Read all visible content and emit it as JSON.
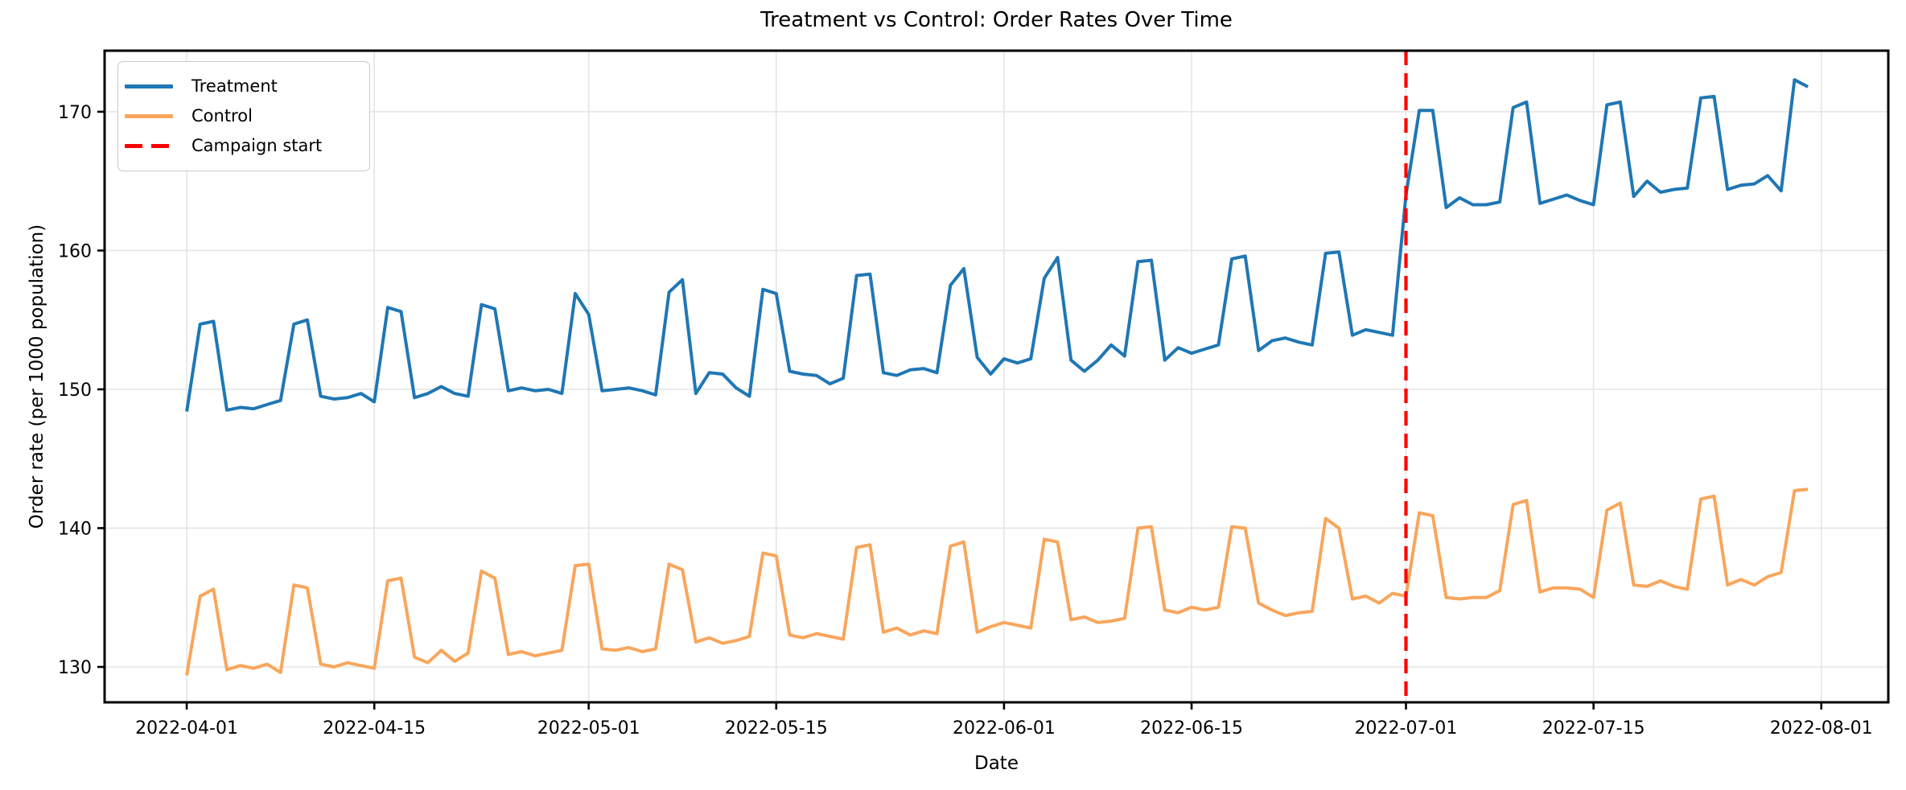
{
  "chart_data": {
    "type": "line",
    "title": "Treatment vs Control: Order Rates Over Time",
    "xlabel": "Date",
    "ylabel": "Order rate (per 1000 population)",
    "x_start_date": "2022-04-01",
    "x_end_date": "2022-07-31",
    "x_frequency": "daily",
    "n_points": 122,
    "grid": true,
    "legend_position": "upper-left",
    "xlim_days": [
      -6.13,
      127.0
    ],
    "ylim": [
      127.45,
      174.4
    ],
    "y_ticks": [
      130,
      140,
      150,
      160,
      170
    ],
    "x_tick_labels": [
      "2022-04-01",
      "2022-04-15",
      "2022-05-01",
      "2022-05-15",
      "2022-06-01",
      "2022-06-15",
      "2022-07-01",
      "2022-07-15",
      "2022-08-01"
    ],
    "x_tick_day_index": [
      0,
      14,
      30,
      44,
      61,
      75,
      91,
      105,
      122
    ],
    "annotation": {
      "label": "Campaign start",
      "date": "2022-07-01",
      "day_index": 91,
      "color": "#ff0000",
      "style": "dashed-vertical"
    },
    "series": [
      {
        "name": "Treatment",
        "color": "#1f77b4",
        "values": [
          148.4,
          154.7,
          154.9,
          148.5,
          148.7,
          148.6,
          148.9,
          149.2,
          154.7,
          155.0,
          149.5,
          149.3,
          149.4,
          149.7,
          149.1,
          155.9,
          155.6,
          149.4,
          149.7,
          150.2,
          149.7,
          149.5,
          156.1,
          155.8,
          149.9,
          150.1,
          149.9,
          150.0,
          149.7,
          156.9,
          155.4,
          149.9,
          150.0,
          150.1,
          149.9,
          149.6,
          157.0,
          157.9,
          149.7,
          151.2,
          151.1,
          150.1,
          149.5,
          157.2,
          156.9,
          151.3,
          151.1,
          151.0,
          150.4,
          150.8,
          158.2,
          158.3,
          151.2,
          151.0,
          151.4,
          151.5,
          151.2,
          157.5,
          158.7,
          152.3,
          151.1,
          152.2,
          151.9,
          152.2,
          158.0,
          159.5,
          152.1,
          151.3,
          152.1,
          153.2,
          152.4,
          159.2,
          159.3,
          152.1,
          153.0,
          152.6,
          152.9,
          153.2,
          159.4,
          159.6,
          152.8,
          153.5,
          153.7,
          153.4,
          153.2,
          159.8,
          159.9,
          153.9,
          154.3,
          154.1,
          153.9,
          164.0,
          170.1,
          170.1,
          163.1,
          163.8,
          163.3,
          163.3,
          163.5,
          170.3,
          170.7,
          163.4,
          163.7,
          164.0,
          163.6,
          163.3,
          170.5,
          170.7,
          163.9,
          165.0,
          164.2,
          164.4,
          164.5,
          171.0,
          171.1,
          164.4,
          164.7,
          164.8,
          165.4,
          164.3,
          172.3,
          171.8
        ]
      },
      {
        "name": "Control",
        "color": "#f8a65c",
        "values": [
          129.4,
          135.1,
          135.6,
          129.8,
          130.1,
          129.9,
          130.2,
          129.6,
          135.9,
          135.7,
          130.2,
          130.0,
          130.3,
          130.1,
          129.9,
          136.2,
          136.4,
          130.7,
          130.3,
          131.2,
          130.4,
          131.0,
          136.9,
          136.4,
          130.9,
          131.1,
          130.8,
          131.0,
          131.2,
          137.3,
          137.4,
          131.3,
          131.2,
          131.4,
          131.1,
          131.3,
          137.4,
          137.0,
          131.8,
          132.1,
          131.7,
          131.9,
          132.2,
          138.2,
          138.0,
          132.3,
          132.1,
          132.4,
          132.2,
          132.0,
          138.6,
          138.8,
          132.5,
          132.8,
          132.3,
          132.6,
          132.4,
          138.7,
          139.0,
          132.5,
          132.9,
          133.2,
          133.0,
          132.8,
          139.2,
          139.0,
          133.4,
          133.6,
          133.2,
          133.3,
          133.5,
          140.0,
          140.1,
          134.1,
          133.9,
          134.3,
          134.1,
          134.3,
          140.1,
          140.0,
          134.6,
          134.1,
          133.7,
          133.9,
          134.0,
          140.7,
          140.0,
          134.9,
          135.1,
          134.6,
          135.3,
          135.1,
          141.1,
          140.9,
          135.0,
          134.9,
          135.0,
          135.0,
          135.5,
          141.7,
          142.0,
          135.4,
          135.7,
          135.7,
          135.6,
          135.0,
          141.3,
          141.8,
          135.9,
          135.8,
          136.2,
          135.8,
          135.6,
          142.1,
          142.3,
          135.9,
          136.3,
          135.9,
          136.5,
          136.8,
          142.7,
          142.8
        ]
      }
    ],
    "style": {
      "grid_color": "#e5e5e5",
      "spine_color": "#000000",
      "tick_color": "#000000",
      "text_color": "#000000",
      "background": "#ffffff"
    }
  }
}
